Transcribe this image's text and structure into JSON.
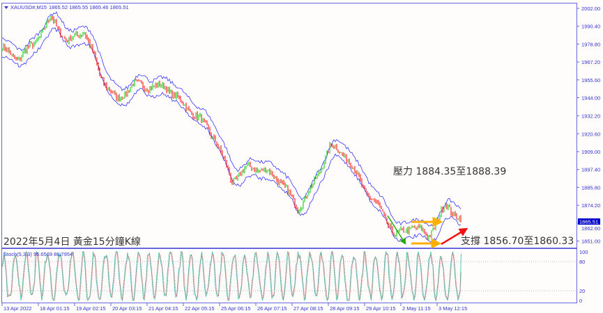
{
  "header": {
    "symbol": "XAUUSD#,M15",
    "ohlc": "1865.52 1865.55 1865.46 1865.51"
  },
  "indicator": {
    "label": "Stoch(5,3,3) 95.6569 86.7954",
    "levels": [
      "100",
      "80",
      "20",
      "0"
    ]
  },
  "annotations": {
    "title": "2022年5月4日 黃金15分鐘K線",
    "resistance": "壓力 1884.35至1888.39",
    "support": "支撐 1856.70至1860.33"
  },
  "current_price": "1865.51",
  "colors": {
    "axis": "#6666dd",
    "bands": "#3333ff",
    "bull": "#00cc00",
    "bear": "#ff0000",
    "stoch_main": "#40c0b0",
    "stoch_signal": "#ff3030",
    "price_tag": "#0000cc"
  },
  "chart_data": {
    "type": "candlestick",
    "title": "",
    "y_ticks": [
      "2002.00",
      "1990.40",
      "1978.80",
      "1967.20",
      "1955.60",
      "1944.00",
      "1932.20",
      "1920.60",
      "1909.00",
      "1897.40",
      "1885.80",
      "1874.20",
      "1862.60",
      "1851.00"
    ],
    "ylim": [
      1847,
      2005
    ],
    "x_ticks": [
      "13 Apr 2022",
      "18 Apr 01:15",
      "19 Apr 02:15",
      "20 Apr 03:15",
      "21 Apr 04:15",
      "22 Apr 05:15",
      "25 Apr 06:15",
      "26 Apr 07:15",
      "27 Apr 08:15",
      "28 Apr 09:15",
      "29 Apr 10:15",
      "2 May 11:15",
      "3 May 12:15"
    ],
    "approx_price_path": [
      {
        "t": "13 Apr 2022",
        "price": 1976
      },
      {
        "t": "15 Apr",
        "price": 1969
      },
      {
        "t": "18 Apr 01:15",
        "price": 1980
      },
      {
        "t": "18 Apr",
        "price": 1996
      },
      {
        "t": "19 Apr",
        "price": 1980
      },
      {
        "t": "19 Apr 02:15",
        "price": 1988
      },
      {
        "t": "20 Apr",
        "price": 1958
      },
      {
        "t": "20 Apr 03:15",
        "price": 1942
      },
      {
        "t": "21 Apr",
        "price": 1953
      },
      {
        "t": "21 Apr 04:15",
        "price": 1951
      },
      {
        "t": "22 Apr",
        "price": 1951
      },
      {
        "t": "22 Apr 05:15",
        "price": 1940
      },
      {
        "t": "25 Apr",
        "price": 1931
      },
      {
        "t": "25 Apr 06:15",
        "price": 1917
      },
      {
        "t": "25 Apr",
        "price": 1890
      },
      {
        "t": "26 Apr",
        "price": 1899
      },
      {
        "t": "26 Apr 07:15",
        "price": 1897
      },
      {
        "t": "27 Apr",
        "price": 1890
      },
      {
        "t": "28 Apr",
        "price": 1872
      },
      {
        "t": "28 Apr 09:15",
        "price": 1888
      },
      {
        "t": "29 Apr",
        "price": 1913
      },
      {
        "t": "29 Apr 10:15",
        "price": 1906
      },
      {
        "t": "2 May",
        "price": 1886
      },
      {
        "t": "2 May",
        "price": 1872
      },
      {
        "t": "2 May 11:15",
        "price": 1854
      },
      {
        "t": "3 May",
        "price": 1861
      },
      {
        "t": "3 May 12:15",
        "price": 1854
      },
      {
        "t": "3 May",
        "price": 1874
      },
      {
        "t": "4 May",
        "price": 1865.51
      }
    ]
  }
}
